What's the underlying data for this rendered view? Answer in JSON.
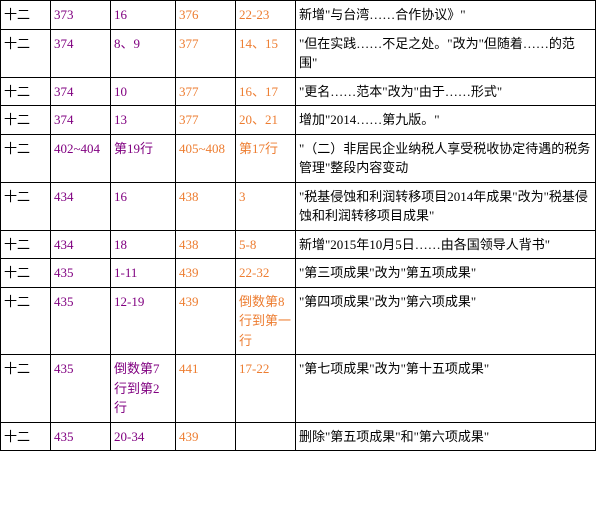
{
  "rows": [
    {
      "c0": "十二",
      "c1": "373",
      "c2": "16",
      "c3": "376",
      "c4": "22-23",
      "c5": "新增\"与台湾……合作协议》\""
    },
    {
      "c0": "十二",
      "c1": "374",
      "c2": "8、9",
      "c3": "377",
      "c4": "14、15",
      "c5": "\"但在实践……不足之处。\"改为\"但随着……的范围\""
    },
    {
      "c0": "十二",
      "c1": "374",
      "c2": "10",
      "c3": "377",
      "c4": "16、17",
      "c5": "\"更名……范本\"改为\"由于……形式\""
    },
    {
      "c0": "十二",
      "c1": "374",
      "c2": "13",
      "c3": "377",
      "c4": "20、21",
      "c5": "增加\"2014……第九版。\""
    },
    {
      "c0": "十二",
      "c1": "402~404",
      "c2": "第19行",
      "c3": "405~408",
      "c4": "第17行",
      "c5": "\"（二）非居民企业纳税人享受税收协定待遇的税务管理\"整段内容变动"
    },
    {
      "c0": "十二",
      "c1": "434",
      "c2": "16",
      "c3": "438",
      "c4": "3",
      "c5": "\"税基侵蚀和利润转移项目2014年成果\"改为\"税基侵蚀和利润转移项目成果\""
    },
    {
      "c0": "十二",
      "c1": "434",
      "c2": "18",
      "c3": "438",
      "c4": "5-8",
      "c5": "新增\"2015年10月5日……由各国领导人背书\""
    },
    {
      "c0": "十二",
      "c1": "435",
      "c2": "1-11",
      "c3": "439",
      "c4": "22-32",
      "c5": "\"第三项成果\"改为\"第五项成果\""
    },
    {
      "c0": "十二",
      "c1": "435",
      "c2": "12-19",
      "c3": "439",
      "c4": "倒数第8行到第一行",
      "c5": "\"第四项成果\"改为\"第六项成果\""
    },
    {
      "c0": "十二",
      "c1": "435",
      "c2": "倒数第7行到第2行",
      "c3": "441",
      "c4": "17-22",
      "c5": "\"第七项成果\"改为\"第十五项成果\""
    },
    {
      "c0": "十二",
      "c1": "435",
      "c2": "20-34",
      "c3": "439",
      "c4": "",
      "c5": "删除\"第五项成果\"和\"第六项成果\""
    }
  ],
  "colors": {
    "col1": "#800080",
    "col2": "#800080",
    "col3": "#ed7d31",
    "col4": "#ed7d31"
  }
}
